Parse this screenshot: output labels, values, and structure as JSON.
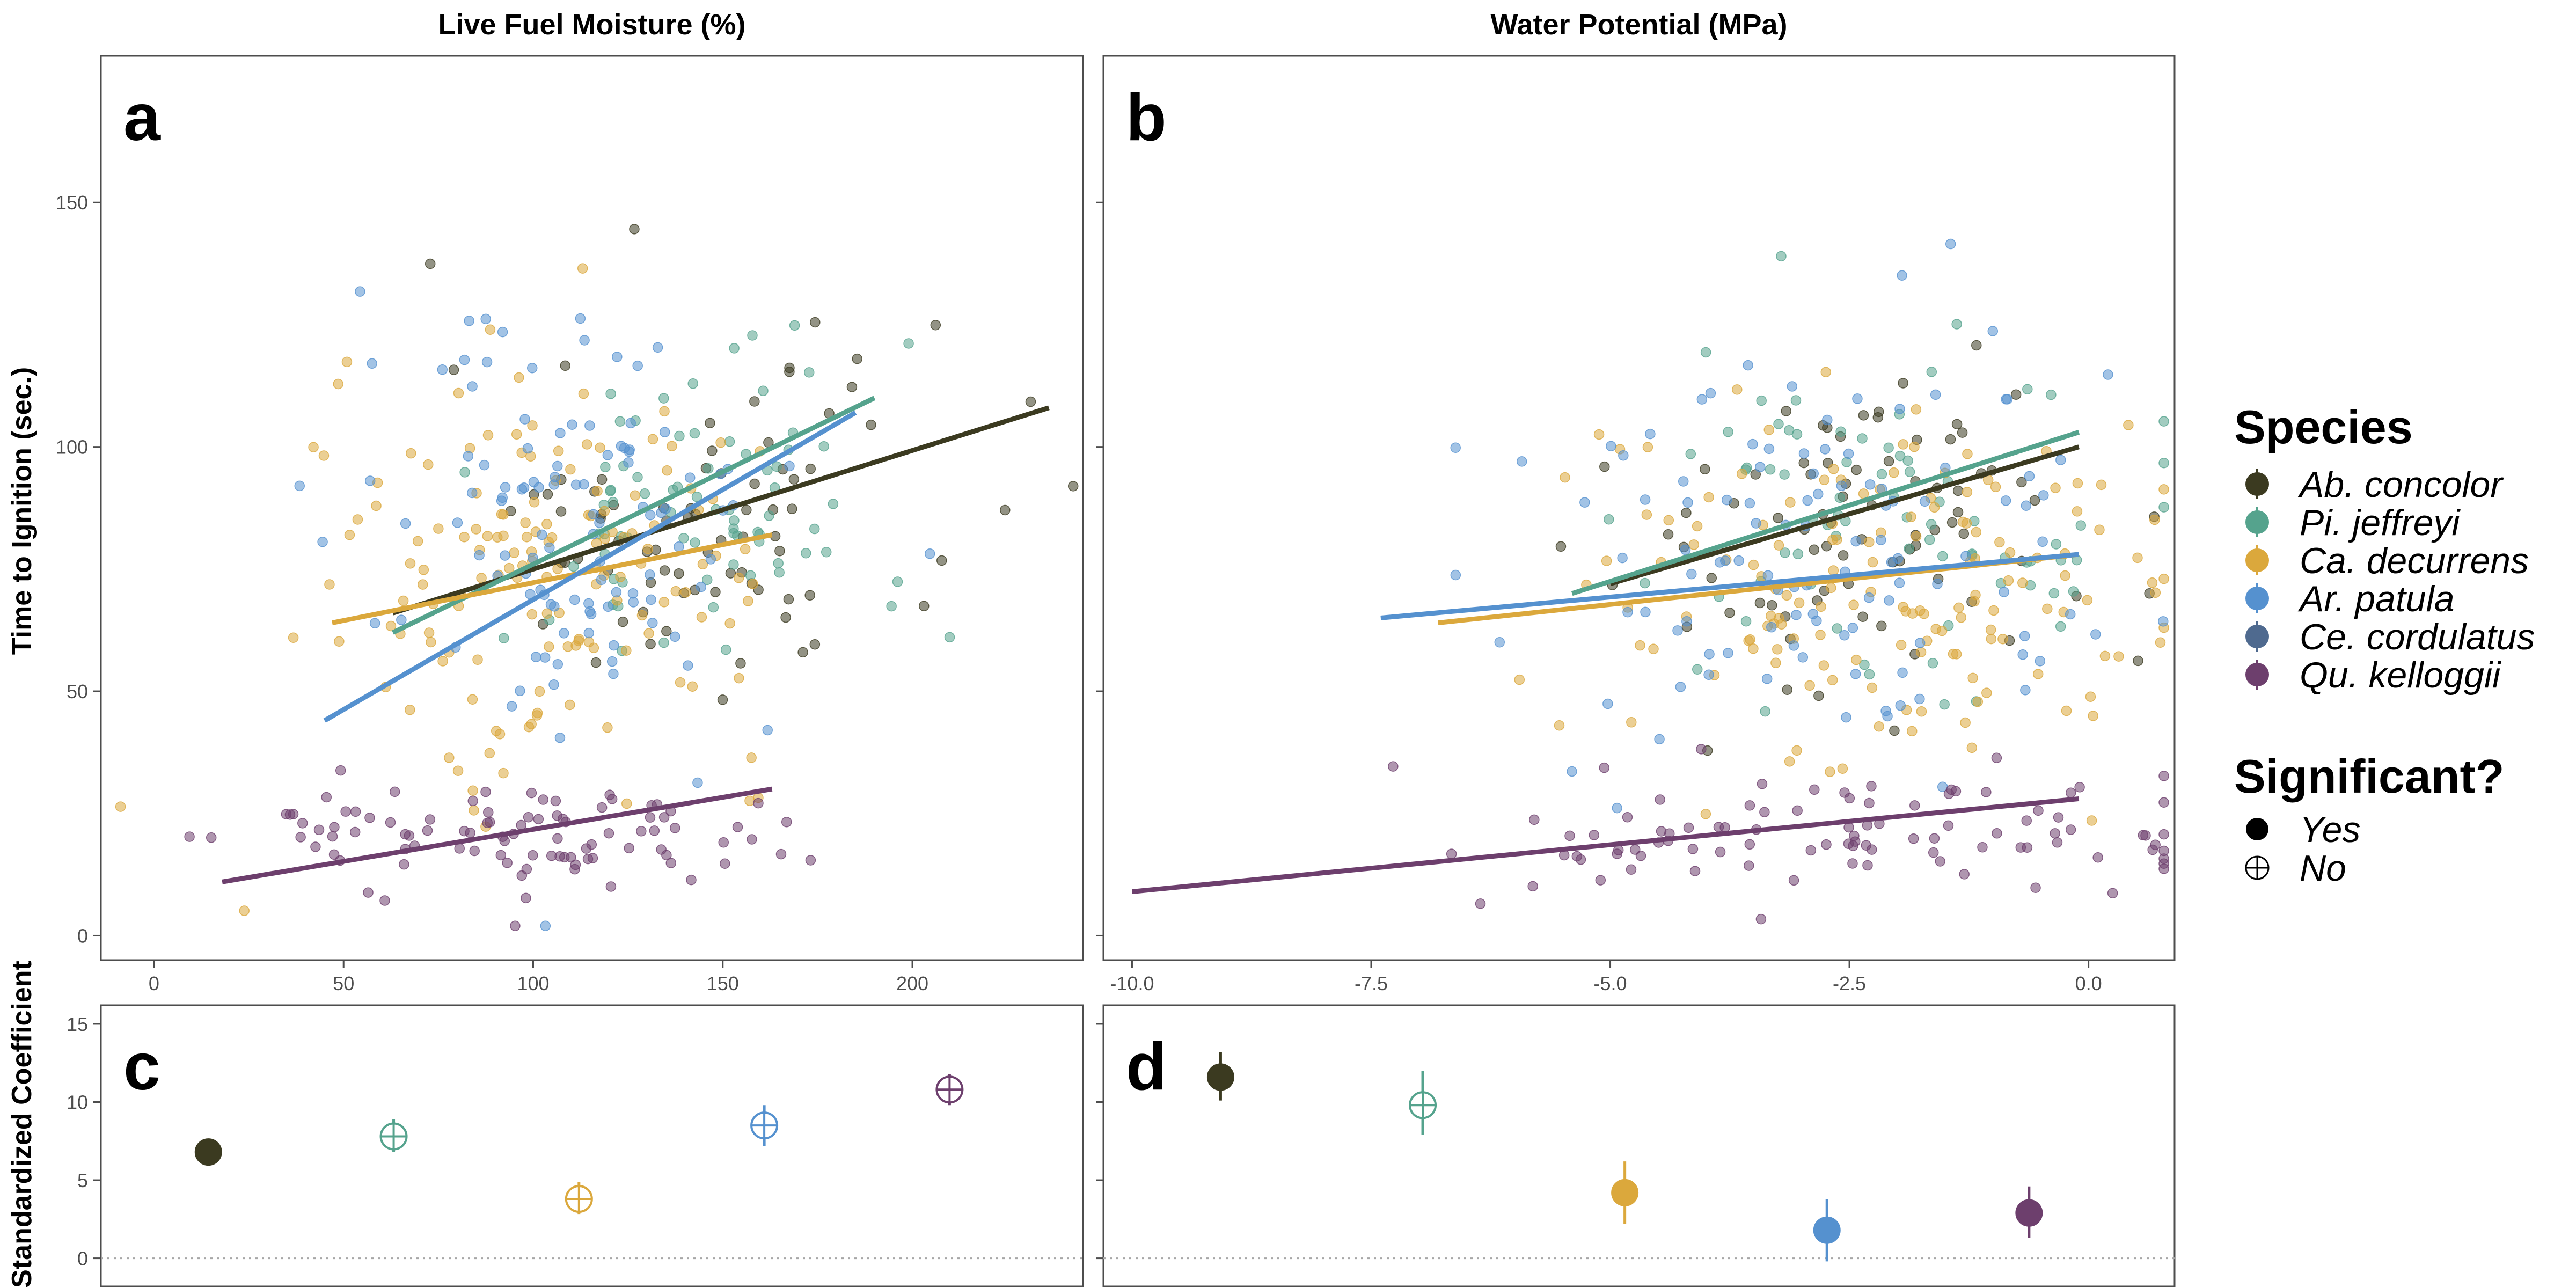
{
  "colors": {
    "Ab. concolor": "#3b3a20",
    "Pi. jeffreyi": "#55a38d",
    "Ca. decurrens": "#dba83c",
    "Ar. patula": "#5591cf",
    "Ce. cordulatus": "#4f6a8f",
    "Qu. kelloggii": "#6d3f6d"
  },
  "legend": {
    "species_title": "Species",
    "species": [
      "Ab. concolor",
      "Pi. jeffreyi",
      "Ca. decurrens",
      "Ar. patula",
      "Ce. cordulatus",
      "Qu. kelloggii"
    ],
    "sig_title": "Significant?",
    "sig_items": [
      {
        "label": "Yes",
        "symbol": "filled-circle"
      },
      {
        "label": "No",
        "symbol": "circle-plus"
      }
    ]
  },
  "axes": {
    "top_ylabel": "Time to Ignition (sec.)",
    "bottom_ylabel": "Standardized Coefficient"
  },
  "chart_data": [
    {
      "panel": "a",
      "strip_title": "Live Fuel Moisture (%)",
      "type": "scatter",
      "xlim": [
        -14,
        245
      ],
      "ylim": [
        -5,
        180
      ],
      "x_ticks": [
        0,
        50,
        100,
        150,
        200
      ],
      "x_tick_labels": [
        "0",
        "50",
        "100",
        "150",
        "200"
      ],
      "y_ticks": [
        0,
        50,
        100,
        150
      ],
      "y_tick_labels": [
        "0",
        "50",
        "100",
        "150"
      ],
      "series": [
        {
          "name": "Ab. concolor",
          "center": [
            145,
            85
          ],
          "spread": [
            35,
            18
          ],
          "n": 80,
          "fit": [
            [
              63,
              66
            ],
            [
              236,
              108
            ]
          ]
        },
        {
          "name": "Pi. jeffreyi",
          "center": [
            145,
            88
          ],
          "spread": [
            28,
            18
          ],
          "n": 75,
          "fit": [
            [
              63,
              62
            ],
            [
              190,
              110
            ]
          ]
        },
        {
          "name": "Ca. decurrens",
          "center": [
            105,
            75
          ],
          "spread": [
            30,
            20
          ],
          "n": 150,
          "fit": [
            [
              47,
              64
            ],
            [
              163,
              82
            ]
          ]
        },
        {
          "name": "Ar. patula",
          "center": [
            110,
            82
          ],
          "spread": [
            30,
            22
          ],
          "n": 110,
          "fit": [
            [
              45,
              44
            ],
            [
              185,
              107
            ]
          ]
        },
        {
          "name": "Qu. kelloggii",
          "center": [
            95,
            20
          ],
          "spread": [
            35,
            6
          ],
          "n": 95,
          "fit": [
            [
              18,
              11
            ],
            [
              163,
              30
            ]
          ]
        }
      ]
    },
    {
      "panel": "b",
      "strip_title": "Water Potential (MPa)",
      "type": "scatter",
      "xlim": [
        -10.3,
        0.9
      ],
      "ylim": [
        -5,
        180
      ],
      "x_ticks": [
        -10,
        -7.5,
        -5,
        -2.5,
        0
      ],
      "x_tick_labels": [
        "-10.0",
        "-7.5",
        "-5.0",
        "-2.5",
        "0.0"
      ],
      "y_ticks": [
        0,
        50,
        100,
        150
      ],
      "y_tick_labels": [
        "",
        "",
        "",
        ""
      ],
      "series": [
        {
          "name": "Ab. concolor",
          "center": [
            -2.3,
            85
          ],
          "spread": [
            1.3,
            18
          ],
          "n": 80,
          "fit": [
            [
              -5.0,
              72
            ],
            [
              -0.1,
              100
            ]
          ]
        },
        {
          "name": "Pi. jeffreyi",
          "center": [
            -2.0,
            88
          ],
          "spread": [
            1.3,
            18
          ],
          "n": 75,
          "fit": [
            [
              -5.4,
              70
            ],
            [
              -0.1,
              103
            ]
          ]
        },
        {
          "name": "Ca. decurrens",
          "center": [
            -2.3,
            72
          ],
          "spread": [
            1.5,
            18
          ],
          "n": 150,
          "fit": [
            [
              -6.8,
              64
            ],
            [
              -0.1,
              78
            ]
          ]
        },
        {
          "name": "Ar. patula",
          "center": [
            -2.8,
            78
          ],
          "spread": [
            1.7,
            22
          ],
          "n": 110,
          "fit": [
            [
              -7.4,
              65
            ],
            [
              -0.1,
              78
            ]
          ]
        },
        {
          "name": "Qu. kelloggii",
          "center": [
            -2.5,
            20
          ],
          "spread": [
            2.4,
            6
          ],
          "n": 95,
          "fit": [
            [
              -10.0,
              9
            ],
            [
              -0.1,
              28
            ]
          ]
        }
      ]
    },
    {
      "panel": "c",
      "type": "scatter",
      "ylim": [
        -1.8,
        16.2
      ],
      "y_ticks": [
        0,
        5,
        10,
        15
      ],
      "y_tick_labels": [
        "0",
        "5",
        "10",
        "15"
      ],
      "reference_line": 0,
      "points": [
        {
          "species": "Ab. concolor",
          "position": 1,
          "value": 6.8,
          "lower": 6.8,
          "upper": 6.8,
          "significant": "Yes"
        },
        {
          "species": "Pi. jeffreyi",
          "position": 2,
          "value": 7.8,
          "lower": 6.8,
          "upper": 8.9,
          "significant": "No"
        },
        {
          "species": "Ca. decurrens",
          "position": 3,
          "value": 3.8,
          "lower": 2.8,
          "upper": 4.9,
          "significant": "No"
        },
        {
          "species": "Ar. patula",
          "position": 4,
          "value": 8.5,
          "lower": 7.2,
          "upper": 9.8,
          "significant": "No"
        },
        {
          "species": "Qu. kelloggii",
          "position": 5,
          "value": 10.8,
          "lower": 9.8,
          "upper": 11.8,
          "significant": "No"
        }
      ]
    },
    {
      "panel": "d",
      "type": "scatter",
      "ylim": [
        -1.8,
        16.2
      ],
      "y_ticks": [
        0,
        5,
        10,
        15
      ],
      "y_tick_labels": [
        "",
        "",
        "",
        ""
      ],
      "reference_line": 0,
      "points": [
        {
          "species": "Ab. concolor",
          "position": 1,
          "value": 11.6,
          "lower": 10.1,
          "upper": 13.2,
          "significant": "Yes"
        },
        {
          "species": "Pi. jeffreyi",
          "position": 2,
          "value": 9.8,
          "lower": 7.9,
          "upper": 12.0,
          "significant": "No"
        },
        {
          "species": "Ca. decurrens",
          "position": 3,
          "value": 4.2,
          "lower": 2.2,
          "upper": 6.2,
          "significant": "Yes"
        },
        {
          "species": "Ar. patula",
          "position": 4,
          "value": 1.8,
          "lower": -0.2,
          "upper": 3.8,
          "significant": "Yes"
        },
        {
          "species": "Qu. kelloggii",
          "position": 5,
          "value": 2.9,
          "lower": 1.3,
          "upper": 4.6,
          "significant": "Yes"
        }
      ]
    }
  ]
}
